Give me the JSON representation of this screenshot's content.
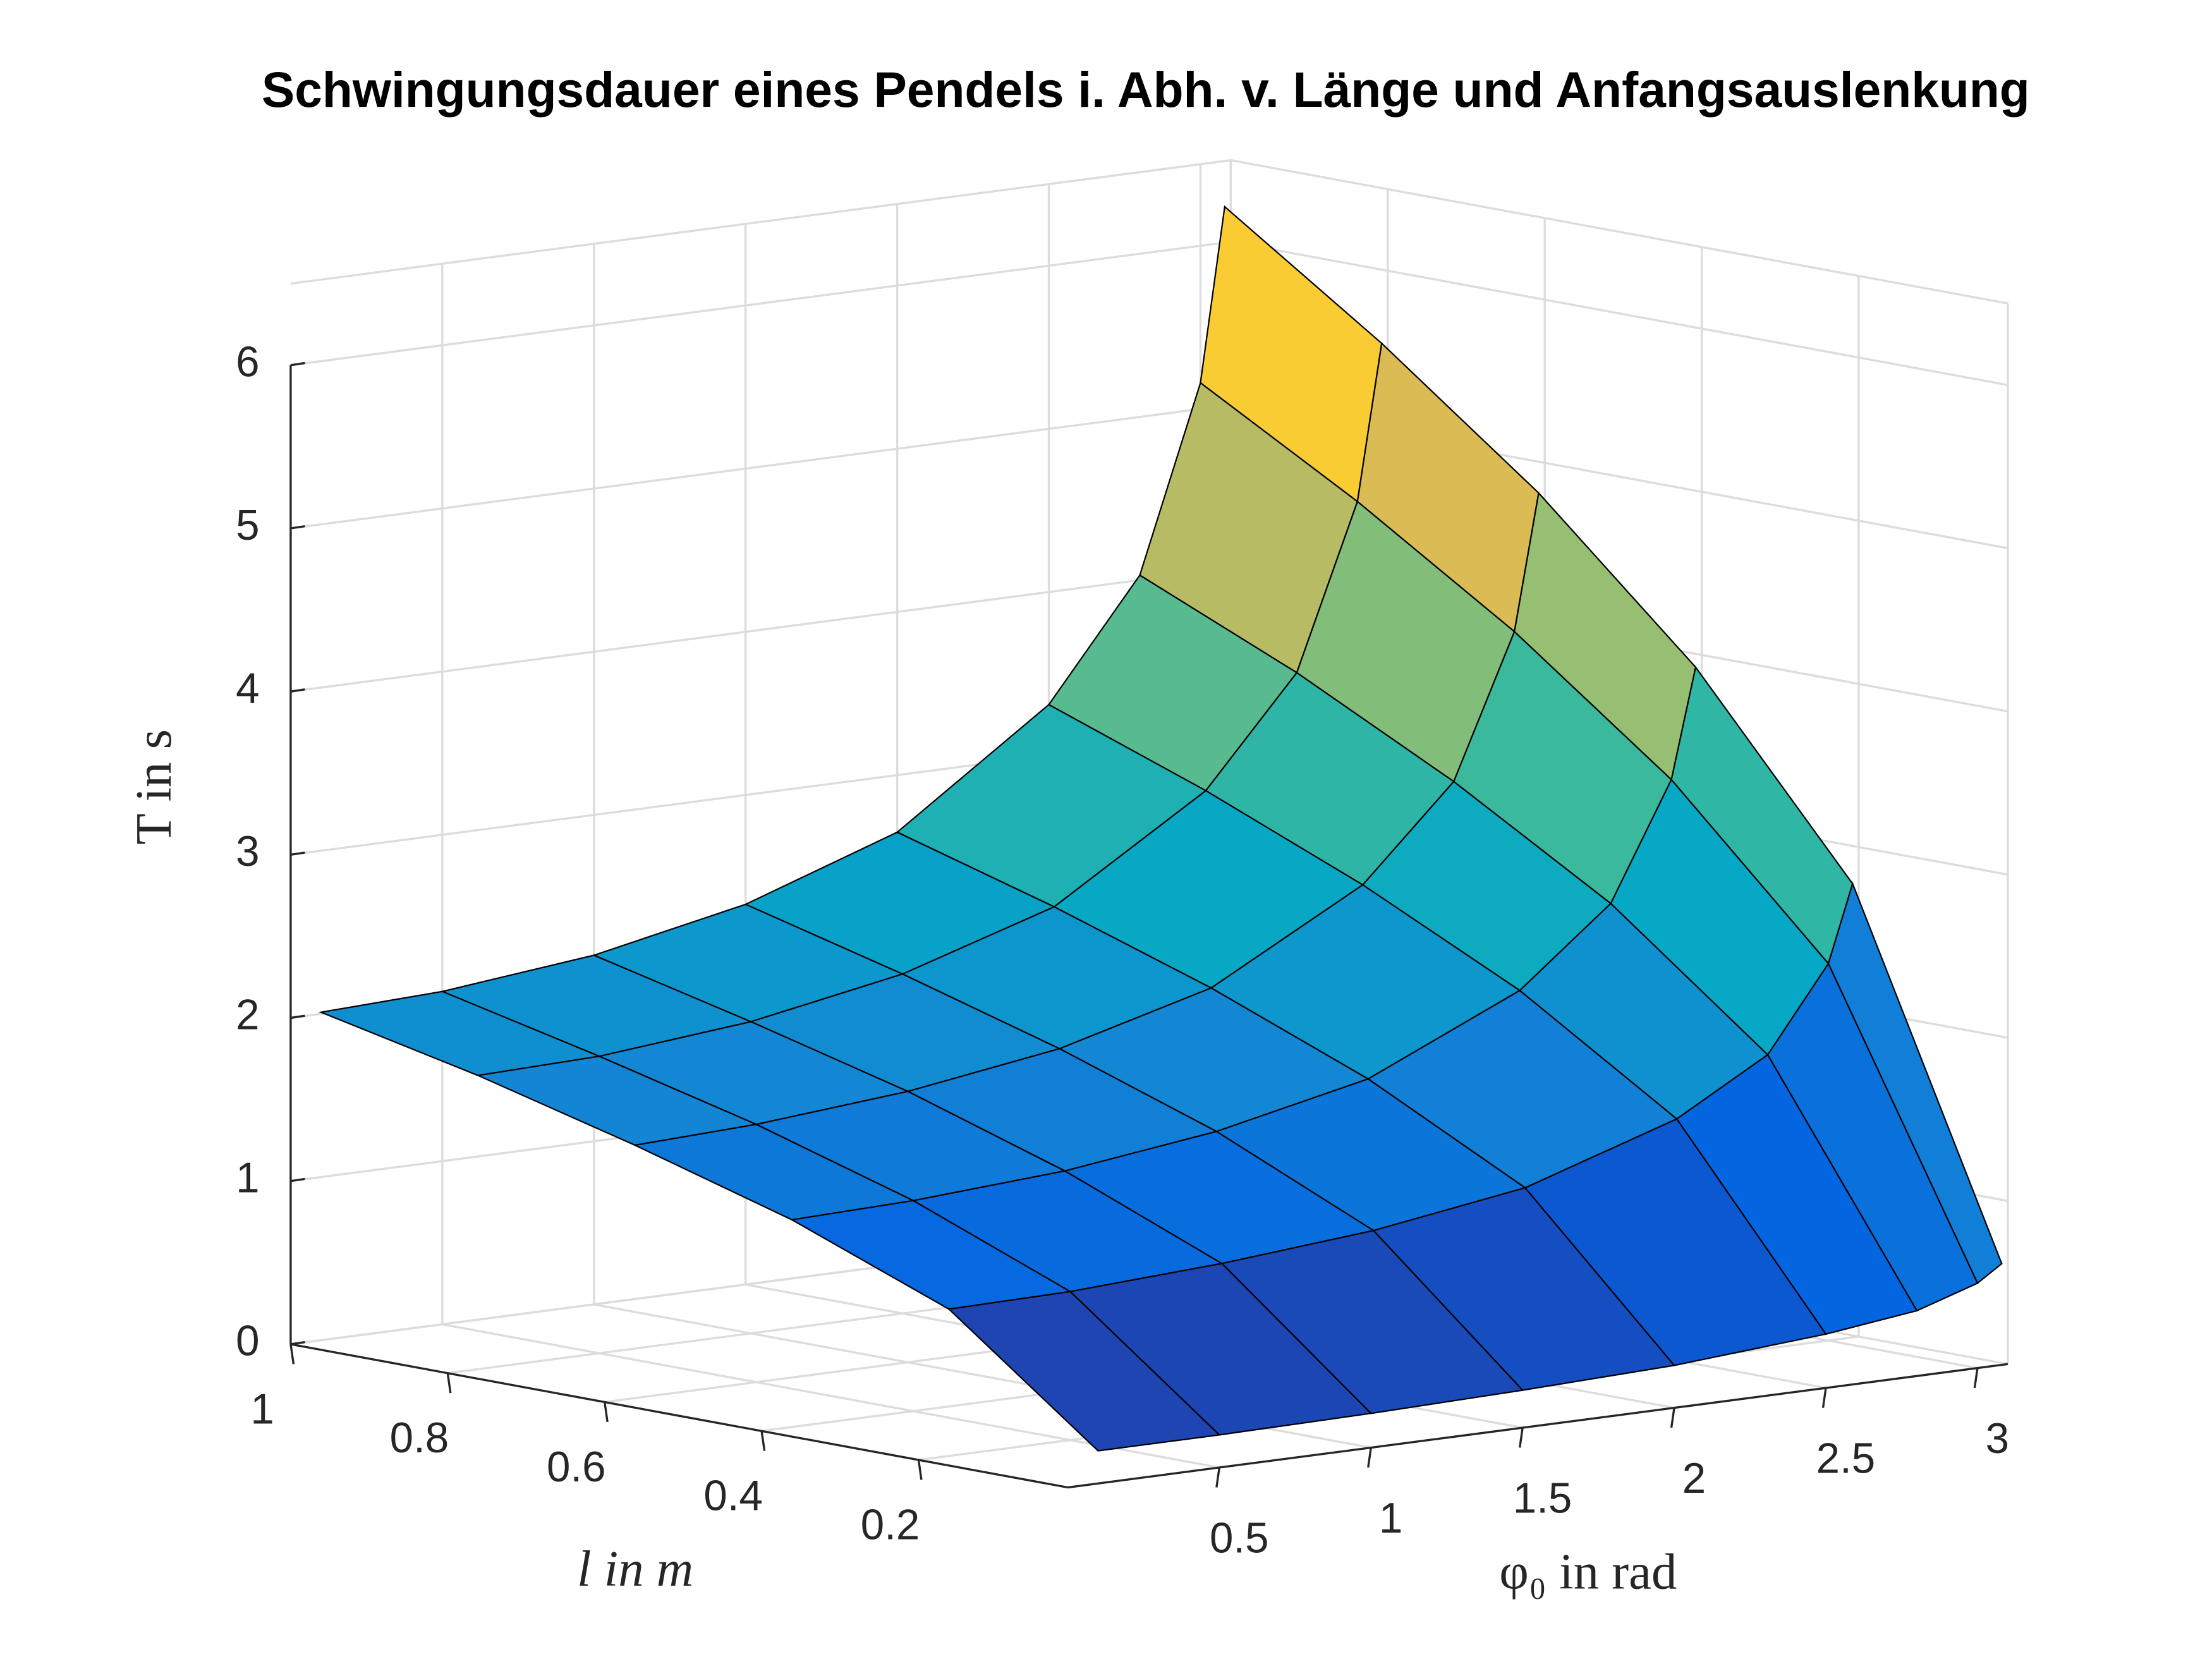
{
  "chart_data": {
    "type": "surface",
    "title": "Schwingungsdauer eines Pendels i. Abh. v. Länge und Anfangsauslenkung",
    "xlabel": "l in m",
    "ylabel": "φ₀ in rad",
    "zlabel": "T in s",
    "x": [
      0.01,
      0.2,
      0.4,
      0.6,
      0.8,
      1.0
    ],
    "y": [
      0.1,
      0.5,
      1.0,
      1.5,
      2.0,
      2.5,
      2.8,
      3.0,
      3.08
    ],
    "values": [
      [
        0.2,
        0.2,
        0.21,
        0.23,
        0.26,
        0.33,
        0.4,
        0.52,
        0.62
      ],
      [
        0.9,
        0.91,
        0.96,
        1.04,
        1.18,
        1.48,
        1.8,
        2.31,
        2.78
      ],
      [
        1.27,
        1.29,
        1.35,
        1.47,
        1.67,
        2.09,
        2.55,
        3.26,
        3.93
      ],
      [
        1.55,
        1.58,
        1.66,
        1.8,
        2.05,
        2.56,
        3.12,
        3.99,
        4.82
      ],
      [
        1.8,
        1.82,
        1.91,
        2.08,
        2.37,
        2.96,
        3.61,
        4.61,
        5.56
      ],
      [
        2.01,
        2.04,
        2.14,
        2.33,
        2.65,
        3.31,
        4.03,
        5.16,
        6.22
      ]
    ],
    "xlim": [
      0.01,
      1
    ],
    "ylim": [
      0,
      3.1
    ],
    "zlim": [
      0,
      6.5
    ],
    "xticks": [
      0.2,
      0.4,
      0.6,
      0.8,
      1
    ],
    "yticks": [
      0.5,
      1,
      1.5,
      2,
      2.5,
      3
    ],
    "zticks": [
      0,
      1,
      2,
      3,
      4,
      5,
      6
    ],
    "grid": true,
    "edge_color": "#000000",
    "colormap": [
      "#352a87",
      "#0363e1",
      "#1485d4",
      "#06a7c6",
      "#38b99e",
      "#92bf73",
      "#d9ba56",
      "#fcce2e",
      "#f9fb0e"
    ]
  }
}
